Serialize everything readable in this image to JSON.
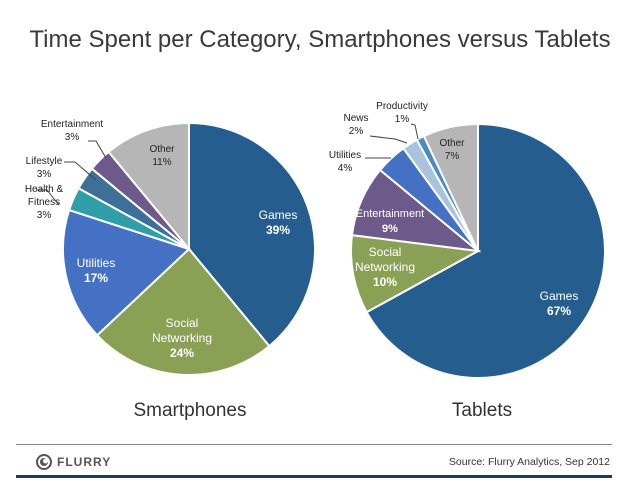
{
  "chart_data": [
    {
      "type": "pie",
      "title": "Smartphones",
      "slices": [
        {
          "label": "Games",
          "value": 39,
          "color": "#255d8e"
        },
        {
          "label": "Social Networking",
          "value": 24,
          "color": "#8aa155"
        },
        {
          "label": "Utilities",
          "value": 17,
          "color": "#4571c4"
        },
        {
          "label": "Health & Fitness",
          "value": 3,
          "color": "#2f9ea8"
        },
        {
          "label": "Lifestyle",
          "value": 3,
          "color": "#3e6f99"
        },
        {
          "label": "Entertainment",
          "value": 3,
          "color": "#6d5a8b"
        },
        {
          "label": "Other",
          "value": 11,
          "color": "#b6b6b6"
        }
      ]
    },
    {
      "type": "pie",
      "title": "Tablets",
      "slices": [
        {
          "label": "Games",
          "value": 67,
          "color": "#255d8e"
        },
        {
          "label": "Social Networking",
          "value": 10,
          "color": "#8aa155"
        },
        {
          "label": "Entertainment",
          "value": 9,
          "color": "#6d5a8b"
        },
        {
          "label": "Utilities",
          "value": 4,
          "color": "#4571c4"
        },
        {
          "label": "News",
          "value": 2,
          "color": "#a9c3df"
        },
        {
          "label": "Productivity",
          "value": 1,
          "color": "#4a8bc6"
        },
        {
          "label": "Other",
          "value": 7,
          "color": "#b6b6b6"
        }
      ]
    }
  ],
  "title": "Time Spent per Category, Smartphones versus Tablets",
  "subtitles": {
    "left": "Smartphones",
    "right": "Tablets"
  },
  "footer": {
    "logo": "FLURRY",
    "source": "Source: Flurry Analytics, Sep 2012"
  }
}
